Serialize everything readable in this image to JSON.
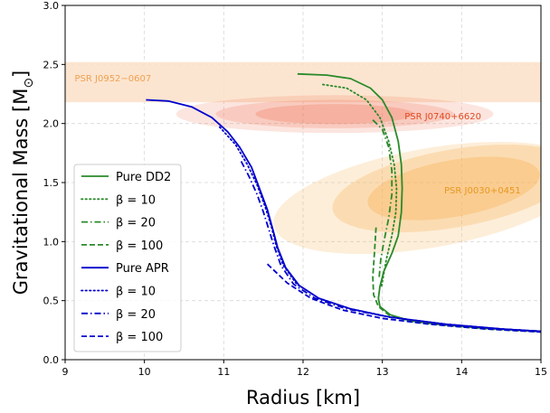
{
  "chart_data": {
    "type": "line",
    "title": "",
    "xlabel": "Radius [km]",
    "ylabel": "Gravitational Mass [M",
    "ylabel_sub": "⊙",
    "ylabel_close": "]",
    "xlim": [
      9,
      15
    ],
    "ylim": [
      0.0,
      3.0
    ],
    "xticks": [
      9,
      10,
      11,
      12,
      13,
      14,
      15
    ],
    "yticks": [
      0.0,
      0.5,
      1.0,
      1.5,
      2.0,
      2.5,
      3.0
    ],
    "xtick_labels": [
      "9",
      "10",
      "11",
      "12",
      "13",
      "14",
      "15"
    ],
    "ytick_labels": [
      "0.0",
      "0.5",
      "1.0",
      "1.5",
      "2.0",
      "2.5",
      "3.0"
    ],
    "grid": true,
    "legend_position": "lower-left",
    "colors": {
      "dd2": "#2a8a2a",
      "apr": "#0000cc"
    },
    "constraints": [
      {
        "name": "PSR J0952−0607",
        "color": "#f5a040",
        "label_color": "#f0a050",
        "band": [
          2.18,
          2.52
        ]
      },
      {
        "name": "PSR J0740+6620",
        "color": "#f07050",
        "label_color": "#e04a20",
        "center": [
          12.4,
          2.08
        ]
      },
      {
        "name": "PSR J0030+0451",
        "color": "#f8b050",
        "label_color": "#e89820",
        "center": [
          13.8,
          1.45
        ]
      }
    ],
    "series": [
      {
        "name": "Pure DD2",
        "group": "dd2",
        "style": "solid",
        "x": [
          11.93,
          12.3,
          12.6,
          12.85,
          13.0,
          13.12,
          13.2,
          13.24,
          13.25,
          13.24,
          13.2,
          13.12,
          13.02,
          12.97,
          12.95,
          12.97,
          13.1,
          13.35,
          13.7,
          14.2,
          14.6,
          15.0
        ],
        "y": [
          2.42,
          2.41,
          2.38,
          2.3,
          2.2,
          2.05,
          1.85,
          1.65,
          1.45,
          1.25,
          1.05,
          0.9,
          0.75,
          0.62,
          0.52,
          0.45,
          0.38,
          0.33,
          0.3,
          0.27,
          0.255,
          0.24
        ]
      },
      {
        "name": "β = 10",
        "group": "dd2",
        "style": "dotted",
        "x": [
          12.25,
          12.55,
          12.8,
          12.97,
          13.08,
          13.15,
          13.18,
          13.17,
          13.12,
          13.05,
          12.99
        ],
        "y": [
          2.33,
          2.3,
          2.2,
          2.05,
          1.85,
          1.65,
          1.45,
          1.25,
          1.05,
          0.85,
          0.62
        ]
      },
      {
        "name": "β = 20",
        "group": "dd2",
        "style": "dashdot",
        "x": [
          12.88,
          13.0,
          13.08,
          13.12,
          13.12,
          13.08,
          13.02,
          12.98,
          12.96
        ],
        "y": [
          2.03,
          1.95,
          1.8,
          1.6,
          1.4,
          1.2,
          1.0,
          0.85,
          0.7
        ]
      },
      {
        "name": "β = 100",
        "group": "dd2",
        "style": "dashed",
        "x": [
          12.92,
          12.9,
          12.88,
          12.89,
          12.95,
          13.1,
          13.4,
          13.8,
          14.3,
          15.0
        ],
        "y": [
          1.12,
          0.9,
          0.7,
          0.55,
          0.45,
          0.37,
          0.32,
          0.29,
          0.26,
          0.235
        ]
      },
      {
        "name": "Pure APR",
        "group": "apr",
        "style": "solid",
        "x": [
          10.02,
          10.3,
          10.6,
          10.85,
          11.05,
          11.2,
          11.35,
          11.45,
          11.55,
          11.62,
          11.68,
          11.78,
          11.95,
          12.2,
          12.6,
          13.1,
          13.8,
          14.5,
          15.0
        ],
        "y": [
          2.2,
          2.19,
          2.14,
          2.05,
          1.93,
          1.8,
          1.63,
          1.45,
          1.27,
          1.1,
          0.95,
          0.78,
          0.63,
          0.52,
          0.43,
          0.36,
          0.3,
          0.26,
          0.24
        ]
      },
      {
        "name": "β = 10",
        "group": "apr",
        "style": "dotted",
        "x": [
          10.95,
          11.15,
          11.3,
          11.42,
          11.52,
          11.6,
          11.66,
          11.75,
          11.92,
          12.2,
          12.6,
          13.1,
          13.8,
          14.5,
          15.0
        ],
        "y": [
          1.97,
          1.82,
          1.65,
          1.48,
          1.3,
          1.13,
          0.97,
          0.8,
          0.64,
          0.52,
          0.43,
          0.36,
          0.3,
          0.26,
          0.24
        ]
      },
      {
        "name": "β = 20",
        "group": "apr",
        "style": "dashdot",
        "x": [
          11.22,
          11.32,
          11.42,
          11.5,
          11.57,
          11.63,
          11.72,
          11.88,
          12.15,
          12.55,
          13.1,
          13.8,
          14.5,
          15.0
        ],
        "y": [
          1.68,
          1.55,
          1.4,
          1.25,
          1.1,
          0.97,
          0.8,
          0.64,
          0.52,
          0.43,
          0.36,
          0.3,
          0.26,
          0.24
        ]
      },
      {
        "name": "β = 100",
        "group": "apr",
        "style": "dashed",
        "x": [
          11.55,
          11.8,
          12.1,
          12.5,
          13.0,
          13.6,
          14.3,
          15.0
        ],
        "y": [
          0.81,
          0.65,
          0.52,
          0.42,
          0.35,
          0.3,
          0.26,
          0.235
        ]
      }
    ]
  }
}
